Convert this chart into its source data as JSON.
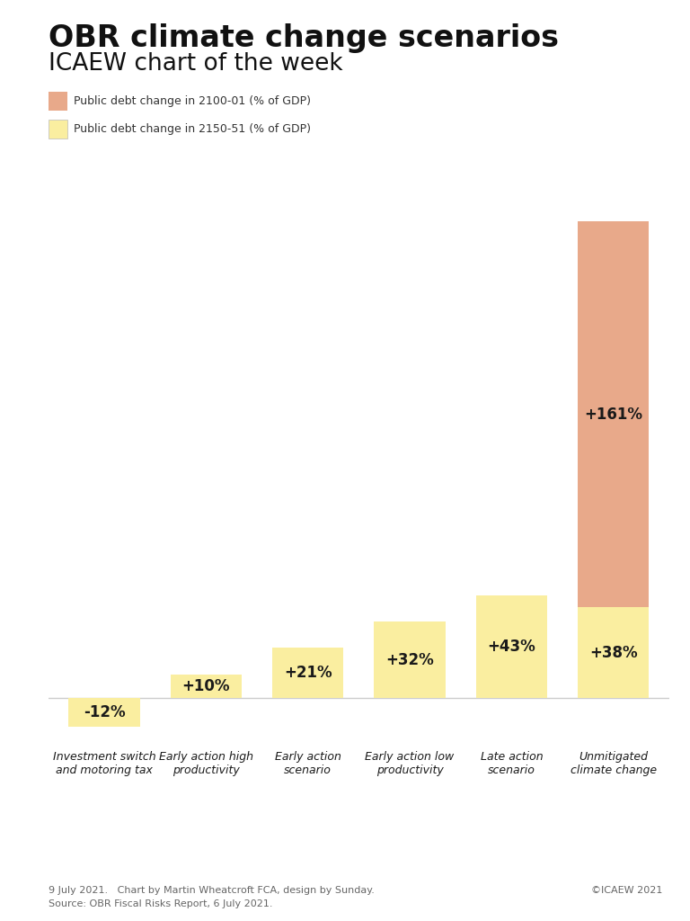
{
  "title_line1": "OBR climate change scenarios",
  "title_line2": "ICAEW chart of the week",
  "categories": [
    "Investment switch\nand motoring tax",
    "Early action high\nproductivity",
    "Early action\nscenario",
    "Early action low\nproductivity",
    "Late action\nscenario",
    "Unmitigated\nclimate change"
  ],
  "values_2150": [
    -12,
    10,
    21,
    32,
    43,
    38
  ],
  "values_2100": [
    0,
    0,
    0,
    0,
    0,
    161
  ],
  "labels_2150": [
    "-12%",
    "+10%",
    "+21%",
    "+32%",
    "+43%",
    "+38%"
  ],
  "label_2100": "+161%",
  "color_2150": "#faeea0",
  "color_2100": "#e8a98a",
  "legend_label_2100": "Public debt change in 2100-01 (% of GDP)",
  "legend_label_2150": "Public debt change in 2150-51 (% of GDP)",
  "footer_left": "9 July 2021.   Chart by Martin Wheatcroft FCA, design by Sunday.\nSource: OBR Fiscal Risks Report, 6 July 2021.",
  "footer_right": "©ICAEW 2021",
  "background_color": "#ffffff",
  "baseline_color": "#cccccc",
  "label_fontsize": 12,
  "title1_fontsize": 24,
  "title2_fontsize": 19,
  "xlabel_fontsize": 9,
  "footer_fontsize": 8,
  "legend_fontsize": 9
}
